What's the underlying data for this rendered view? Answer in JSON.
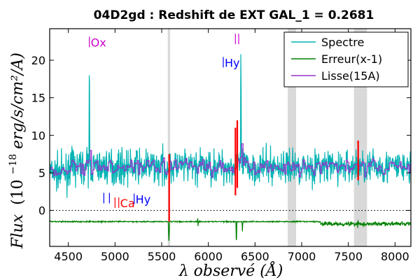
{
  "chart_data": {
    "type": "line",
    "title": "04D2gd : Redshift de EXT GAL_1 = 0.2681",
    "xlabel": "λ observé (Å)",
    "ylabel_main": "Flux",
    "ylabel_units": "(10",
    "ylabel_exponent": "−18",
    "ylabel_rest": "erg/s/cm²/A)",
    "xlim": [
      4300,
      8170
    ],
    "ylim": [
      -4.8,
      24.2
    ],
    "xticks": [
      4500,
      5000,
      5500,
      6000,
      6500,
      7000,
      7500,
      8000
    ],
    "yticks": [
      0,
      5,
      10,
      15,
      20
    ],
    "colors": {
      "spectre": "#00b3b3",
      "erreur": "#008000",
      "lisse": "#9932cc",
      "bad_pixel": "#ff0000",
      "shade": "#d9d9d9",
      "zero_line": "#000000",
      "label_magenta": "#cc00cc",
      "label_blue": "#0000ff",
      "label_red": "#ff0000"
    },
    "legend": {
      "placement": "top-right",
      "entries": [
        {
          "name": "Spectre",
          "color": "#00b3b3"
        },
        {
          "name": "Erreur(x-1)",
          "color": "#008000"
        },
        {
          "name": "Lisse(15A)",
          "color": "#9932cc"
        }
      ]
    },
    "shaded_bands": [
      [
        5565,
        5590
      ],
      [
        6850,
        6940
      ],
      [
        7560,
        7700
      ]
    ],
    "zero_line": 0,
    "spectre_baseline": 5.8,
    "spectre_noise": 1.9,
    "lisse_baseline": 5.5,
    "erreur_baseline": -1.5,
    "emission_peaks": [
      {
        "x": 4725,
        "y": 21
      },
      {
        "x": 6348,
        "y": 21.8
      },
      {
        "x": 6300,
        "y": 10.5
      }
    ],
    "absorption_dips": [
      {
        "x": 5577,
        "y": -4.2
      },
      {
        "x": 5890,
        "y": -2.4
      },
      {
        "x": 6300,
        "y": -4.4
      },
      {
        "x": 6365,
        "y": -2.8
      },
      {
        "x": 7600,
        "y": -2.5
      },
      {
        "x": 7900,
        "y": -2.2
      }
    ],
    "bad_pixels": [
      {
        "x": 5580,
        "y1": -1.5,
        "y2": 7.5
      },
      {
        "x": 6290,
        "y1": 2.0,
        "y2": 11.0
      },
      {
        "x": 6310,
        "y1": 3.0,
        "y2": 12.0
      },
      {
        "x": 7605,
        "y1": 4.0,
        "y2": 9.3
      }
    ],
    "line_labels": [
      {
        "text": "Ox",
        "x": 4725,
        "y": 22.2,
        "color": "#cc00cc",
        "ticks": [
          4725
        ]
      },
      {
        "text": "",
        "x": 6315,
        "y": 22.6,
        "color": "#cc00cc",
        "ticks": [
          6290,
          6325
        ]
      },
      {
        "text": "Hy",
        "x": 6160,
        "y": 19.5,
        "color": "#0000ff",
        "ticks": [
          6160
        ]
      },
      {
        "text": "",
        "x": 4880,
        "y": 1.4,
        "color": "#0000ff",
        "ticks": [
          4880,
          4940
        ]
      },
      {
        "text": "Ca",
        "x": 5000,
        "y": 0.8,
        "color": "#ff0000",
        "ticks": [
          5000,
          5040
        ]
      },
      {
        "text": "Hy",
        "x": 5205,
        "y": 1.3,
        "color": "#0000ff",
        "ticks": [
          5205
        ]
      }
    ]
  }
}
